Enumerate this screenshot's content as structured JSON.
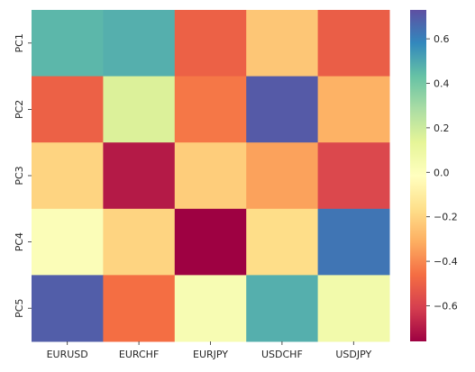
{
  "chart_data": {
    "type": "heatmap",
    "title": "",
    "xlabel": "",
    "ylabel": "",
    "x_labels": [
      "EURUSD",
      "EURCHF",
      "EURJPY",
      "USDCHF",
      "USDJPY"
    ],
    "y_labels": [
      "PC1",
      "PC2",
      "PC3",
      "PC4",
      "PC5"
    ],
    "values": [
      [
        0.46,
        0.48,
        -0.5,
        -0.24,
        -0.51
      ],
      [
        -0.5,
        0.16,
        -0.44,
        0.7,
        -0.3
      ],
      [
        -0.2,
        -0.7,
        -0.22,
        -0.34,
        -0.58
      ],
      [
        0.01,
        -0.2,
        -0.76,
        -0.17,
        0.63
      ],
      [
        0.69,
        -0.46,
        0.03,
        0.48,
        0.06
      ]
    ],
    "colorbar": {
      "ticks": [
        "0.6",
        "0.4",
        "0.2",
        "0.0",
        "−0.2",
        "−0.4",
        "−0.6"
      ],
      "tick_values": [
        0.6,
        0.4,
        0.2,
        0.0,
        -0.2,
        -0.4,
        -0.6
      ],
      "vmin": -0.76,
      "vmax": 0.73
    },
    "colormap": "Spectral",
    "colormap_stops": [
      "#9e0142",
      "#d53e4f",
      "#f46d43",
      "#fdae61",
      "#fee08b",
      "#ffffbf",
      "#e6f598",
      "#abdda4",
      "#66c2a5",
      "#3288bd",
      "#5e4fa2"
    ],
    "grid": false
  }
}
